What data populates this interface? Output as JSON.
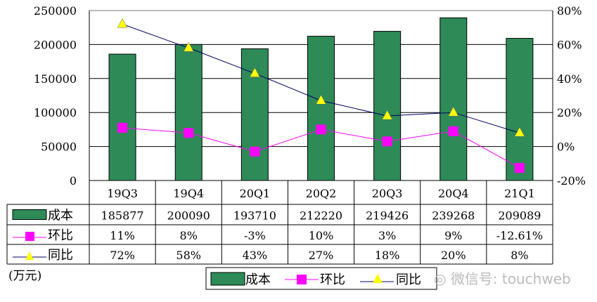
{
  "chart_data": {
    "type": "bar",
    "categories": [
      "19Q3",
      "19Q4",
      "20Q1",
      "20Q2",
      "20Q3",
      "20Q4",
      "21Q1"
    ],
    "series": [
      {
        "name": "成本",
        "type": "bar",
        "axis": "left",
        "color": "#2e8b57",
        "values": [
          185877,
          200090,
          193710,
          212220,
          219426,
          239268,
          209089
        ],
        "labels": [
          "185877",
          "200090",
          "193710",
          "212220",
          "219426",
          "239268",
          "209089"
        ]
      },
      {
        "name": "环比",
        "type": "line",
        "axis": "right",
        "color": "#ff00ff",
        "marker": "square",
        "values": [
          11,
          8,
          -3,
          10,
          3,
          9,
          -12.61
        ],
        "labels": [
          "11%",
          "8%",
          "-3%",
          "10%",
          "3%",
          "9%",
          "-12.61%"
        ]
      },
      {
        "name": "同比",
        "type": "line",
        "axis": "right",
        "color": "#000066",
        "marker": "triangle",
        "marker_color": "#ffff00",
        "values": [
          72,
          58,
          43,
          27,
          18,
          20,
          8
        ],
        "labels": [
          "72%",
          "58%",
          "43%",
          "27%",
          "18%",
          "20%",
          "8%"
        ]
      }
    ],
    "ylim_left": [
      0,
      250000
    ],
    "ylim_right": [
      -20,
      80
    ],
    "left_ticks": [
      "0",
      "50000",
      "100000",
      "150000",
      "200000",
      "250000"
    ],
    "right_ticks": [
      "-20%",
      "0%",
      "20%",
      "40%",
      "60%",
      "80%"
    ],
    "unit_label": "(万元)",
    "grid": true,
    "legend": "bottom-center",
    "data_table": true
  },
  "watermark": "微信号: touchweb"
}
